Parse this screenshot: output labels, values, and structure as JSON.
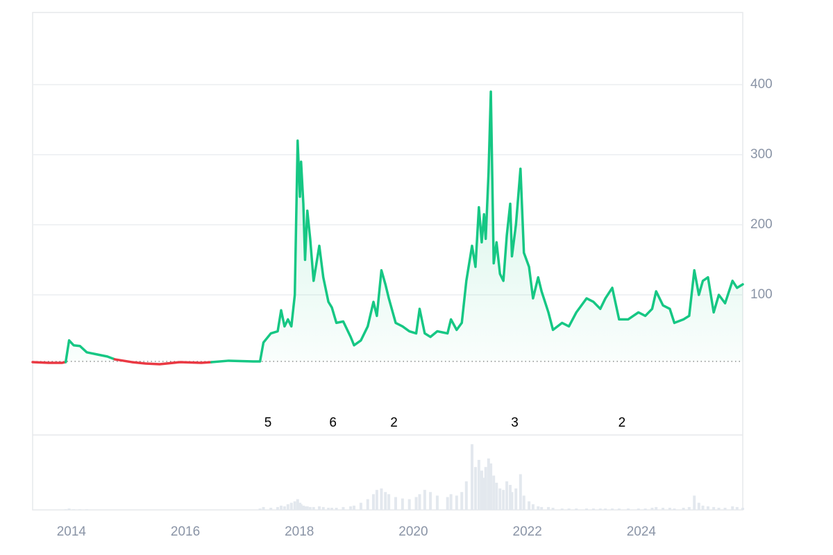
{
  "chart_data": {
    "type": "line",
    "x": [
      2013.32,
      2013.6,
      2013.84,
      2013.9,
      2013.96,
      2014.04,
      2014.15,
      2014.27,
      2014.45,
      2014.63,
      2014.76,
      2015.06,
      2015.3,
      2015.55,
      2015.91,
      2016.28,
      2016.46,
      2016.76,
      2017.19,
      2017.31,
      2017.37,
      2017.5,
      2017.62,
      2017.68,
      2017.74,
      2017.8,
      2017.86,
      2017.92,
      2017.97,
      2018.01,
      2018.03,
      2018.07,
      2018.1,
      2018.14,
      2018.19,
      2018.25,
      2018.35,
      2018.42,
      2018.51,
      2018.57,
      2018.65,
      2018.77,
      2018.9,
      2018.96,
      2019.08,
      2019.2,
      2019.3,
      2019.36,
      2019.44,
      2019.51,
      2019.57,
      2019.69,
      2019.81,
      2019.93,
      2020.05,
      2020.11,
      2020.2,
      2020.3,
      2020.42,
      2020.6,
      2020.66,
      2020.76,
      2020.85,
      2020.93,
      2021.03,
      2021.09,
      2021.15,
      2021.2,
      2021.24,
      2021.27,
      2021.32,
      2021.36,
      2021.41,
      2021.46,
      2021.52,
      2021.58,
      2021.64,
      2021.7,
      2021.73,
      2021.8,
      2021.88,
      2021.94,
      2022.03,
      2022.1,
      2022.19,
      2022.25,
      2022.37,
      2022.45,
      2022.61,
      2022.73,
      2022.86,
      2023.04,
      2023.16,
      2023.28,
      2023.37,
      2023.49,
      2023.61,
      2023.77,
      2023.95,
      2024.07,
      2024.19,
      2024.26,
      2024.38,
      2024.5,
      2024.58,
      2024.74,
      2024.84,
      2024.93,
      2025.01,
      2025.08,
      2025.17,
      2025.27,
      2025.36,
      2025.47,
      2025.6,
      2025.68,
      2025.78
    ],
    "values": [
      4,
      3,
      3,
      4,
      35,
      28,
      27,
      18,
      15,
      12,
      8,
      4,
      2,
      1,
      4,
      3,
      4,
      6,
      5,
      5,
      32,
      45,
      48,
      78,
      55,
      65,
      55,
      100,
      320,
      240,
      290,
      230,
      150,
      220,
      180,
      120,
      170,
      125,
      90,
      82,
      60,
      62,
      40,
      28,
      35,
      55,
      90,
      70,
      135,
      115,
      95,
      60,
      55,
      48,
      45,
      80,
      45,
      40,
      48,
      45,
      65,
      50,
      60,
      120,
      170,
      140,
      225,
      175,
      215,
      180,
      275,
      390,
      145,
      175,
      130,
      120,
      185,
      230,
      155,
      200,
      280,
      160,
      140,
      95,
      125,
      105,
      75,
      50,
      60,
      55,
      75,
      95,
      90,
      80,
      95,
      110,
      65,
      65,
      75,
      70,
      80,
      105,
      85,
      80,
      60,
      65,
      70,
      135,
      100,
      120,
      125,
      75,
      100,
      88,
      120,
      110,
      115
    ],
    "volume": {
      "color": "#e3e8ee",
      "ylim": [
        0,
        100
      ],
      "values": [
        0,
        0,
        0,
        1,
        2,
        1,
        1,
        1,
        0,
        0,
        0,
        0,
        0,
        0,
        0,
        0,
        0,
        0,
        0,
        2,
        4,
        3,
        4,
        6,
        5,
        8,
        10,
        12,
        15,
        10,
        8,
        6,
        5,
        5,
        4,
        4,
        5,
        4,
        3,
        3,
        3,
        4,
        5,
        6,
        10,
        15,
        22,
        28,
        30,
        25,
        22,
        18,
        16,
        15,
        18,
        22,
        28,
        25,
        20,
        18,
        22,
        20,
        25,
        40,
        92,
        60,
        70,
        55,
        45,
        60,
        72,
        65,
        48,
        38,
        30,
        28,
        40,
        35,
        25,
        30,
        50,
        20,
        12,
        8,
        5,
        4,
        4,
        3,
        2,
        2,
        2,
        2,
        2,
        2,
        2,
        2,
        2,
        2,
        2,
        2,
        3,
        4,
        3,
        3,
        2,
        3,
        4,
        20,
        10,
        6,
        5,
        4,
        3,
        3,
        5,
        4,
        3
      ]
    },
    "baseline": 5,
    "up_color": "#16c784",
    "down_color": "#ea3943",
    "xlim": [
      2013.32,
      2025.78
    ],
    "xticks": [
      2014,
      2016,
      2018,
      2020,
      2022,
      2024
    ],
    "ylim": [
      -100,
      500
    ],
    "yticks": [
      100,
      200,
      300,
      400
    ],
    "grid": true,
    "annotations": [
      {
        "x": 2017.45,
        "label": "5"
      },
      {
        "x": 2018.59,
        "label": "6"
      },
      {
        "x": 2019.66,
        "label": "2"
      },
      {
        "x": 2021.78,
        "label": "3"
      },
      {
        "x": 2023.66,
        "label": "2"
      }
    ]
  }
}
